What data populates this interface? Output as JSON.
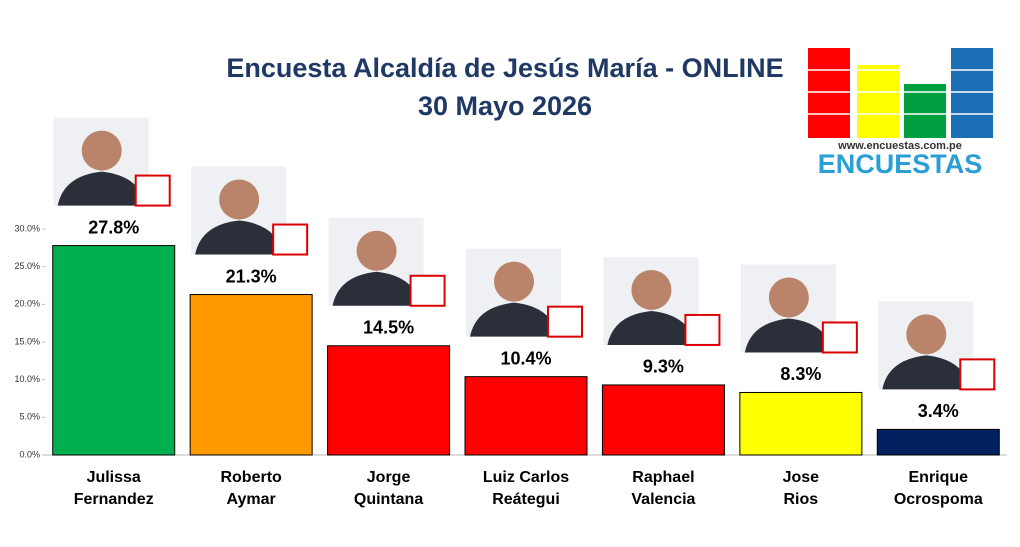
{
  "chart_data": {
    "type": "bar",
    "title": "Encuesta Alcaldía de Jesús María - ONLINE",
    "subtitle": "30 Mayo 2026",
    "categories": [
      "Julissa\nFernandez",
      "Roberto\nAymar",
      "Jorge\nQuintana",
      "Luiz Carlos\nReátegui",
      "Raphael\nValencia",
      "Jose\nRios",
      "Enrique\nOcrospoma"
    ],
    "values": [
      27.8,
      21.3,
      14.5,
      10.4,
      9.3,
      8.3,
      3.4
    ],
    "value_labels": [
      "27.8%",
      "21.3%",
      "14.5%",
      "10.4%",
      "9.3%",
      "8.3%",
      "3.4%"
    ],
    "colors": [
      "#00b050",
      "#ff9900",
      "#ff0000",
      "#ff0000",
      "#ff0000",
      "#ffff00",
      "#002060"
    ],
    "ylim": [
      0,
      30
    ],
    "yticks": [
      {
        "value": 0,
        "label": "0.0%"
      },
      {
        "value": 5,
        "label": "5.0%"
      },
      {
        "value": 10,
        "label": "10.0%"
      },
      {
        "value": 15,
        "label": "15.0%"
      },
      {
        "value": 20,
        "label": "20.0%"
      },
      {
        "value": 25,
        "label": "25.0%"
      },
      {
        "value": 30,
        "label": "30.0%"
      }
    ]
  },
  "logo": {
    "url": "www.encuestas.com.pe",
    "name": "ENCUESTAS"
  }
}
